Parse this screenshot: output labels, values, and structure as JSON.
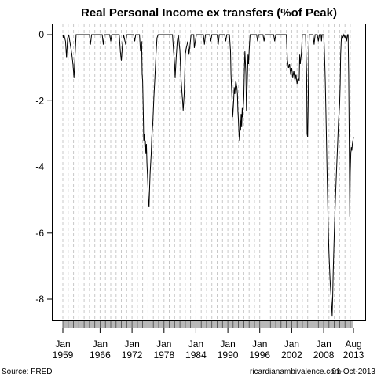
{
  "chart_data": {
    "type": "line",
    "title": "Real Personal Income ex transfers (%of Peak)",
    "xlabel": "",
    "ylabel": "",
    "x_range": [
      1959.0,
      2013.6
    ],
    "ylim": [
      -8.8,
      0.2
    ],
    "y_ticks": [
      0,
      -2,
      -4,
      -6,
      -8
    ],
    "x_ticks": [
      {
        "x": 1959.0,
        "line1": "Jan",
        "line2": "1959"
      },
      {
        "x": 1966.0,
        "line1": "Jan",
        "line2": "1966"
      },
      {
        "x": 1972.0,
        "line1": "Jan",
        "line2": "1972"
      },
      {
        "x": 1978.0,
        "line1": "Jan",
        "line2": "1978"
      },
      {
        "x": 1984.0,
        "line1": "Jan",
        "line2": "1984"
      },
      {
        "x": 1990.0,
        "line1": "Jan",
        "line2": "1990"
      },
      {
        "x": 1996.0,
        "line1": "Jan",
        "line2": "1996"
      },
      {
        "x": 2002.0,
        "line1": "Jan",
        "line2": "2002"
      },
      {
        "x": 2008.0,
        "line1": "Jan",
        "line2": "2008"
      },
      {
        "x": 2013.6,
        "line1": "Aug",
        "line2": "2013"
      }
    ],
    "grid": "vertical-dashed",
    "series": [
      {
        "name": "",
        "color": "#000000",
        "points": [
          [
            1959.0,
            0.0
          ],
          [
            1959.1,
            -0.1
          ],
          [
            1959.2,
            0.0
          ],
          [
            1959.5,
            -0.2
          ],
          [
            1959.7,
            -0.7
          ],
          [
            1959.9,
            -0.1
          ],
          [
            1960.1,
            0.0
          ],
          [
            1960.4,
            -0.3
          ],
          [
            1960.7,
            -0.6
          ],
          [
            1960.9,
            -0.9
          ],
          [
            1961.1,
            -1.3
          ],
          [
            1961.3,
            -0.6
          ],
          [
            1961.5,
            0.0
          ],
          [
            1964.0,
            0.0
          ],
          [
            1964.2,
            -0.3
          ],
          [
            1964.4,
            0.0
          ],
          [
            1966.4,
            0.0
          ],
          [
            1966.6,
            -0.3
          ],
          [
            1966.8,
            0.0
          ],
          [
            1967.8,
            0.0
          ],
          [
            1968.0,
            -0.2
          ],
          [
            1968.2,
            0.0
          ],
          [
            1969.6,
            0.0
          ],
          [
            1969.8,
            -0.5
          ],
          [
            1970.0,
            -0.8
          ],
          [
            1970.2,
            -0.3
          ],
          [
            1970.4,
            0.0
          ],
          [
            1970.8,
            -0.3
          ],
          [
            1971.0,
            0.0
          ],
          [
            1972.3,
            0.0
          ],
          [
            1972.5,
            -0.2
          ],
          [
            1972.7,
            0.0
          ],
          [
            1973.4,
            0.0
          ],
          [
            1973.6,
            -0.5
          ],
          [
            1973.8,
            -0.2
          ],
          [
            1973.9,
            -1.2
          ],
          [
            1974.0,
            -1.4
          ],
          [
            1974.1,
            -2.2
          ],
          [
            1974.2,
            -3.2
          ],
          [
            1974.3,
            -3.0
          ],
          [
            1974.4,
            -3.4
          ],
          [
            1974.5,
            -3.2
          ],
          [
            1974.6,
            -3.6
          ],
          [
            1974.7,
            -3.3
          ],
          [
            1974.8,
            -3.9
          ],
          [
            1974.9,
            -4.2
          ],
          [
            1975.0,
            -4.6
          ],
          [
            1975.1,
            -5.1
          ],
          [
            1975.2,
            -5.2
          ],
          [
            1975.3,
            -4.6
          ],
          [
            1975.4,
            -4.2
          ],
          [
            1975.6,
            -3.6
          ],
          [
            1975.7,
            -3.1
          ],
          [
            1975.9,
            -2.7
          ],
          [
            1976.1,
            -1.9
          ],
          [
            1976.3,
            -1.3
          ],
          [
            1976.5,
            -0.6
          ],
          [
            1976.7,
            -0.1
          ],
          [
            1976.9,
            0.0
          ],
          [
            1979.6,
            0.0
          ],
          [
            1979.8,
            -0.5
          ],
          [
            1980.0,
            -0.9
          ],
          [
            1980.1,
            -1.3
          ],
          [
            1980.3,
            -0.7
          ],
          [
            1980.5,
            -0.2
          ],
          [
            1980.7,
            0.0
          ],
          [
            1981.0,
            -0.5
          ],
          [
            1981.2,
            -1.3
          ],
          [
            1981.4,
            -1.8
          ],
          [
            1981.5,
            -2.0
          ],
          [
            1981.6,
            -2.3
          ],
          [
            1981.8,
            -1.8
          ],
          [
            1981.9,
            -1.2
          ],
          [
            1982.0,
            -0.6
          ],
          [
            1982.2,
            -0.4
          ],
          [
            1982.5,
            -0.2
          ],
          [
            1982.7,
            -0.6
          ],
          [
            1982.9,
            -0.3
          ],
          [
            1983.1,
            0.0
          ],
          [
            1983.6,
            0.0
          ],
          [
            1983.7,
            -0.4
          ],
          [
            1983.9,
            -0.2
          ],
          [
            1984.1,
            0.0
          ],
          [
            1985.4,
            0.0
          ],
          [
            1985.6,
            -0.3
          ],
          [
            1985.8,
            0.0
          ],
          [
            1986.6,
            0.0
          ],
          [
            1986.8,
            -0.2
          ],
          [
            1987.0,
            0.0
          ],
          [
            1988.0,
            0.0
          ],
          [
            1988.2,
            -0.3
          ],
          [
            1988.4,
            0.0
          ],
          [
            1989.4,
            0.0
          ],
          [
            1989.6,
            -0.2
          ],
          [
            1989.8,
            0.0
          ],
          [
            1990.3,
            0.0
          ],
          [
            1990.5,
            -0.5
          ],
          [
            1990.6,
            -1.2
          ],
          [
            1990.7,
            -1.6
          ],
          [
            1990.8,
            -2.0
          ],
          [
            1990.9,
            -2.5
          ],
          [
            1991.0,
            -2.3
          ],
          [
            1991.1,
            -2.0
          ],
          [
            1991.2,
            -1.6
          ],
          [
            1991.3,
            -1.8
          ],
          [
            1991.5,
            -1.4
          ],
          [
            1991.7,
            -1.6
          ],
          [
            1991.8,
            -1.8
          ],
          [
            1991.9,
            -2.3
          ],
          [
            1992.0,
            -2.6
          ],
          [
            1992.1,
            -3.0
          ],
          [
            1992.2,
            -3.2
          ],
          [
            1992.3,
            -2.6
          ],
          [
            1992.4,
            -2.9
          ],
          [
            1992.5,
            -2.4
          ],
          [
            1992.6,
            -2.8
          ],
          [
            1992.7,
            -2.2
          ],
          [
            1992.8,
            -2.5
          ],
          [
            1992.9,
            -2.2
          ],
          [
            1993.0,
            -1.9
          ],
          [
            1993.1,
            -1.1
          ],
          [
            1993.2,
            -0.5
          ],
          [
            1993.4,
            -1.2
          ],
          [
            1993.5,
            -2.3
          ],
          [
            1993.6,
            -1.7
          ],
          [
            1993.7,
            -1.2
          ],
          [
            1993.8,
            -0.6
          ],
          [
            1993.9,
            -0.9
          ],
          [
            1994.0,
            -0.5
          ],
          [
            1994.1,
            -0.2
          ],
          [
            1994.2,
            0.0
          ],
          [
            1995.4,
            0.0
          ],
          [
            1995.6,
            -0.2
          ],
          [
            1995.8,
            0.0
          ],
          [
            1996.6,
            0.0
          ],
          [
            1996.8,
            -0.2
          ],
          [
            1997.0,
            0.0
          ],
          [
            1998.6,
            0.0
          ],
          [
            1998.8,
            -0.2
          ],
          [
            1999.0,
            0.0
          ],
          [
            2001.0,
            0.0
          ],
          [
            2001.2,
            -0.8
          ],
          [
            2001.4,
            -1.0
          ],
          [
            2001.6,
            -0.9
          ],
          [
            2001.8,
            -1.2
          ],
          [
            2002.0,
            -1.0
          ],
          [
            2002.2,
            -1.3
          ],
          [
            2002.4,
            -1.1
          ],
          [
            2002.6,
            -1.4
          ],
          [
            2002.8,
            -1.2
          ],
          [
            2003.0,
            -1.5
          ],
          [
            2003.2,
            -1.3
          ],
          [
            2003.4,
            -1.4
          ],
          [
            2003.5,
            -0.6
          ],
          [
            2003.6,
            -0.9
          ],
          [
            2003.8,
            -0.6
          ],
          [
            2003.9,
            -0.3
          ],
          [
            2004.0,
            0.0
          ],
          [
            2004.6,
            0.0
          ],
          [
            2004.8,
            -1.2
          ],
          [
            2004.9,
            -3.0
          ],
          [
            2005.0,
            -3.1
          ],
          [
            2005.1,
            -2.0
          ],
          [
            2005.2,
            -0.5
          ],
          [
            2005.3,
            0.0
          ],
          [
            2006.0,
            0.0
          ],
          [
            2006.2,
            -0.3
          ],
          [
            2006.4,
            0.0
          ],
          [
            2006.8,
            0.0
          ],
          [
            2007.0,
            -0.2
          ],
          [
            2007.2,
            0.0
          ],
          [
            2007.5,
            0.0
          ],
          [
            2007.6,
            -0.2
          ],
          [
            2007.7,
            0.0
          ],
          [
            2008.0,
            0.0
          ],
          [
            2008.1,
            -0.3
          ],
          [
            2008.2,
            -0.8
          ],
          [
            2008.3,
            -1.4
          ],
          [
            2008.4,
            -2.2
          ],
          [
            2008.5,
            -2.9
          ],
          [
            2008.6,
            -3.8
          ],
          [
            2008.7,
            -4.6
          ],
          [
            2008.8,
            -5.4
          ],
          [
            2008.9,
            -6.1
          ],
          [
            2009.0,
            -6.6
          ],
          [
            2009.1,
            -7.0
          ],
          [
            2009.2,
            -7.4
          ],
          [
            2009.3,
            -7.7
          ],
          [
            2009.4,
            -7.9
          ],
          [
            2009.5,
            -8.2
          ],
          [
            2009.6,
            -8.5
          ],
          [
            2009.7,
            -7.9
          ],
          [
            2009.8,
            -7.2
          ],
          [
            2009.9,
            -6.6
          ],
          [
            2010.0,
            -6.0
          ],
          [
            2010.2,
            -5.0
          ],
          [
            2010.4,
            -4.2
          ],
          [
            2010.6,
            -3.4
          ],
          [
            2010.8,
            -2.6
          ],
          [
            2011.0,
            -2.1
          ],
          [
            2011.1,
            -1.5
          ],
          [
            2011.2,
            -0.6
          ],
          [
            2011.3,
            -0.2
          ],
          [
            2011.4,
            0.0
          ],
          [
            2011.6,
            -0.1
          ],
          [
            2011.8,
            0.0
          ],
          [
            2012.0,
            -0.1
          ],
          [
            2012.2,
            0.0
          ],
          [
            2012.3,
            -0.2
          ],
          [
            2012.4,
            -0.1
          ],
          [
            2012.5,
            0.0
          ],
          [
            2012.6,
            0.0
          ],
          [
            2012.7,
            -1.2
          ],
          [
            2012.8,
            -3.2
          ],
          [
            2012.9,
            -5.5
          ],
          [
            2013.0,
            -4.2
          ],
          [
            2013.1,
            -3.6
          ],
          [
            2013.2,
            -3.4
          ],
          [
            2013.3,
            -3.5
          ],
          [
            2013.4,
            -3.3
          ],
          [
            2013.5,
            -3.2
          ],
          [
            2013.6,
            -3.1
          ]
        ]
      }
    ]
  },
  "footer": {
    "source": "Source: FRED",
    "site": "ricardianambivalence.com",
    "date": "01-Oct-2013"
  }
}
